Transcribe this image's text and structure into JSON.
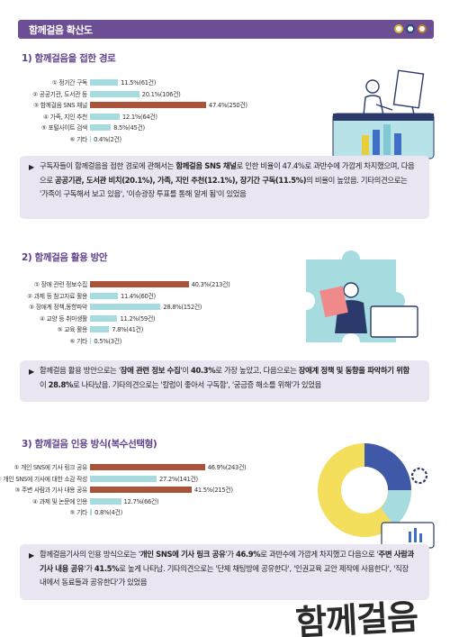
{
  "header": {
    "title": "함께걸음 확산도"
  },
  "sections": [
    {
      "title": "1) 함께걸음을 접한 경로",
      "items": [
        {
          "label": "① 정기간 구독",
          "value": "11.5%(61건)",
          "pct": 11.5
        },
        {
          "label": "② 공공기관, 도서관 등",
          "value": "20.1%(106건)",
          "pct": 20.1
        },
        {
          "label": "③ 함께걸음 SNS 채널",
          "value": "47.4%(250건)",
          "pct": 47.4,
          "highlight": true
        },
        {
          "label": "④ 가족, 지인 추천",
          "value": "12.1%(64건)",
          "pct": 12.1
        },
        {
          "label": "⑤ 포털사이트 검색",
          "value": "8.5%(45건)",
          "pct": 8.5
        },
        {
          "label": "⑥ 기타",
          "value": "0.4%(2건)",
          "pct": 0.4
        }
      ],
      "note": {
        "parts": [
          {
            "t": "구독자들이 함께걸음을 접한 경로에 관해서는 "
          },
          {
            "t": "함께걸음 SNS 채널",
            "b": true
          },
          {
            "t": "로 인한 비율이 47.4%로 과반수에 가깝게 차지했으며, 다음으로 "
          },
          {
            "t": "공공기관, 도서관 비치(20.1%), 가족, 지인 추천(12.1%), 장기간 구독(11.5%)",
            "b": true
          },
          {
            "t": "의 비율이 높았음. 기타의견으로는 '가족이 구독해서 보고 있음', '이슈광장 투표를 통해 알게 됨'이 있었음"
          }
        ]
      }
    },
    {
      "title": "2) 함께걸음 활용 방안",
      "items": [
        {
          "label": "① 장애 관련 정보수집",
          "value": "40.3%(213건)",
          "pct": 40.3,
          "highlight": true
        },
        {
          "label": "② 과제 등 참고자료 활용",
          "value": "11.4%(60건)",
          "pct": 11.4
        },
        {
          "label": "③ 장애계 정책,동향파악",
          "value": "28.8%(152건)",
          "pct": 28.8
        },
        {
          "label": "④ 교양 등 취미생활",
          "value": "11.2%(59건)",
          "pct": 11.2
        },
        {
          "label": "⑤ 교육 활용",
          "value": "7.8%(41건)",
          "pct": 7.8
        },
        {
          "label": "⑥ 기타",
          "value": "0.5%(3건)",
          "pct": 0.5
        }
      ],
      "note": {
        "parts": [
          {
            "t": "함께걸음 활용 방안으로는 '"
          },
          {
            "t": "장애 관련 정보 수집",
            "b": true
          },
          {
            "t": "'이 "
          },
          {
            "t": "40.3%",
            "b": true
          },
          {
            "t": "로 가장 높았고, 다음으로는 "
          },
          {
            "t": "장애계 정책 및 동향을 파악하기 위함",
            "b": true
          },
          {
            "t": "이 "
          },
          {
            "t": "28.8%",
            "b": true
          },
          {
            "t": "로 나타났음. 기타의견으로는 '칼럼이 좋아서 구독함', '궁금증 해소를 위해'가 있었음"
          }
        ]
      }
    },
    {
      "title": "3) 함께걸음 인용 방식(복수선택형)",
      "items": [
        {
          "label": "① 개인 SNS에 기사 링크 공유",
          "value": "46.9%(243건)",
          "pct": 46.9,
          "highlight": true
        },
        {
          "label": "② 개인 SNS에 기사에 대한 소감 작성",
          "value": "27.2%(141건)",
          "pct": 27.2
        },
        {
          "label": "③ 주변 사람과 기사 내용 공유",
          "value": "41.5%(215건)",
          "pct": 41.5,
          "highlight": true
        },
        {
          "label": "④ 과제 및 논문에 인용",
          "value": "12.7%(66건)",
          "pct": 12.7
        },
        {
          "label": "⑤ 기타",
          "value": "0.8%(4건)",
          "pct": 0.8
        }
      ],
      "note": {
        "parts": [
          {
            "t": "함께걸음기사의 인용 방식으로는 '"
          },
          {
            "t": "개인 SNS에 기사 링크 공유",
            "b": true
          },
          {
            "t": "'가 "
          },
          {
            "t": "46.9%",
            "b": true
          },
          {
            "t": "로 과반수에 가깝게 차지했고 다음으로 '"
          },
          {
            "t": "주변 사람과 기사 내용 공유",
            "b": true
          },
          {
            "t": "'가 "
          },
          {
            "t": "41.5%",
            "b": true
          },
          {
            "t": "로 높게 나타남. 기타의견으로는 '단체 채팅방에 공유한다', '인권교육 교안 제작에 사용한다', '직장내에서 동료들과 공유한다'가 있었음"
          }
        ]
      }
    }
  ],
  "watermark": "함께걸음",
  "colors": {
    "purple": "#6b4e93",
    "bar": "#a6dbe0",
    "bar_highlight": "#a9533b",
    "note_bg": "#e9e6f1"
  }
}
